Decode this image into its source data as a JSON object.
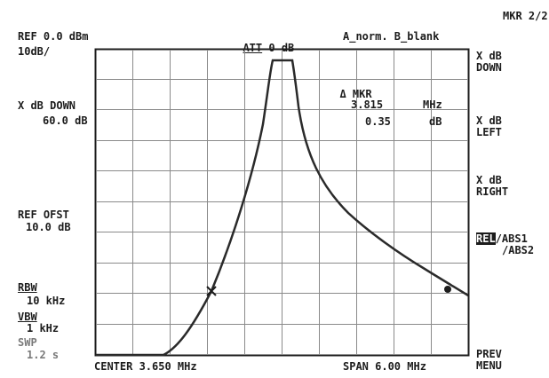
{
  "header": {
    "ref": "REF 0.0 dBm",
    "scale": "10dB/",
    "att_label": "ATT",
    "att_value": "0 dB",
    "trace_mode": "A_norm. B_blank"
  },
  "left_panel": {
    "xdb_label": "X dB DOWN",
    "xdb_value": "60.0 dB",
    "ref_ofst_label": "REF OFST",
    "ref_ofst_value": "10.0 dB",
    "rbw_label": "RBW",
    "rbw_value": "10 kHz",
    "vbw_label": "VBW",
    "vbw_value": "1 kHz",
    "swp_label": "SWP",
    "swp_value": "1.2 s"
  },
  "marker": {
    "label": "MKR",
    "freq_value": "3.815",
    "freq_unit": "MHz",
    "level_value": "0.35",
    "level_unit": "dB"
  },
  "footer": {
    "center": "CENTER 3.650 MHz",
    "span": "SPAN 6.00 MHz"
  },
  "softkeys": {
    "title": "MKR 2/2",
    "xdb_down": "X dB\nDOWN",
    "xdb_left": "X dB\nLEFT",
    "xdb_right": "X dB\nRIGHT",
    "rel_hidden": "REL",
    "abs1": "/ABS1",
    "abs2": "/ABS2",
    "prev_menu": "PREV\nMENU"
  },
  "colors": {
    "text": "#1c1c1c",
    "grid": "#8a8a8a",
    "trace": "#2a2a2a",
    "background": "#ffffff"
  }
}
